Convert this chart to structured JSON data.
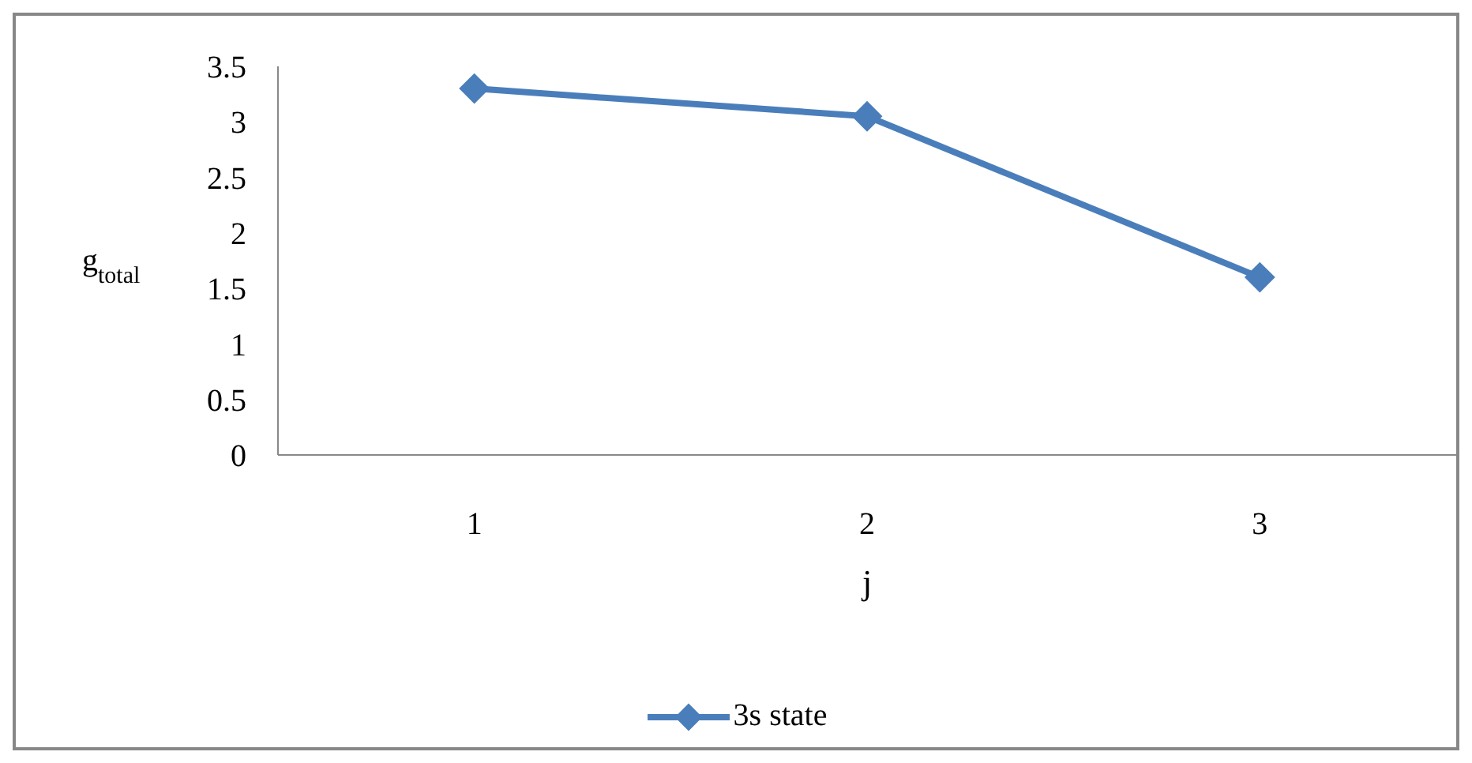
{
  "chart_data": {
    "type": "line",
    "xlabel": "j",
    "ylabel": "g$_{total}$",
    "categories": [
      "1",
      "2",
      "3"
    ],
    "series": [
      {
        "name": "3s state",
        "color": "#4a7ebb",
        "values": [
          3.3,
          3.05,
          1.6
        ]
      }
    ],
    "ylim": [
      0,
      3.5
    ],
    "yticks": [
      0,
      0.5,
      1,
      1.5,
      2,
      2.5,
      3,
      3.5
    ],
    "grid": false,
    "legend": "bottom",
    "marker": "diamond",
    "line_style": "solid"
  }
}
